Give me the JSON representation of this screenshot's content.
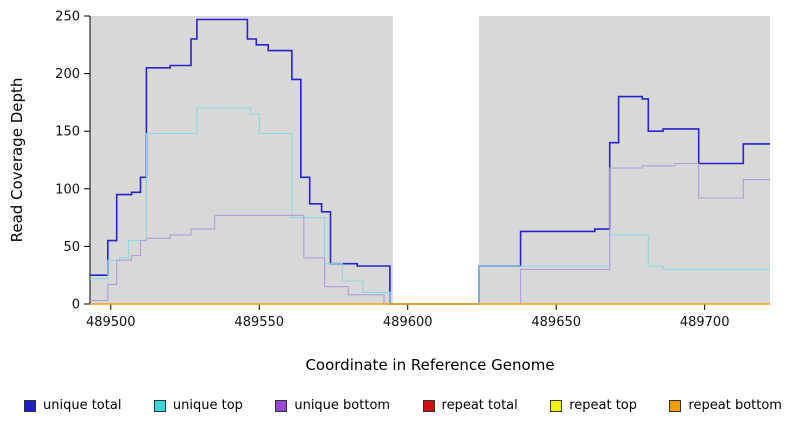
{
  "figure": {
    "background": "#ffffff"
  },
  "chart_data": {
    "type": "line",
    "title": "",
    "xlabel": "Coordinate in Reference Genome",
    "ylabel": "Read Coverage Depth",
    "xlim": [
      489493,
      489722
    ],
    "ylim": [
      0,
      250
    ],
    "xticks": [
      489500,
      489550,
      489600,
      489650,
      489700
    ],
    "yticks": [
      0,
      50,
      100,
      150,
      200,
      250
    ],
    "plot_background": "#d8d8d8",
    "gap_region": [
      489595,
      489624
    ],
    "step_mode": "after",
    "legend_position": "bottom",
    "grid": false,
    "series": [
      {
        "name": "unique total",
        "line_color": "#2424cc",
        "legend_color": "#1c1ccc",
        "width": 1.6,
        "points": [
          [
            489493,
            25
          ],
          [
            489499,
            55
          ],
          [
            489502,
            95
          ],
          [
            489507,
            97
          ],
          [
            489510,
            110
          ],
          [
            489512,
            205
          ],
          [
            489520,
            207
          ],
          [
            489527,
            230
          ],
          [
            489529,
            247
          ],
          [
            489546,
            230
          ],
          [
            489549,
            225
          ],
          [
            489553,
            220
          ],
          [
            489561,
            195
          ],
          [
            489564,
            110
          ],
          [
            489567,
            87
          ],
          [
            489571,
            80
          ],
          [
            489574,
            35
          ],
          [
            489583,
            33
          ],
          [
            489594,
            0
          ],
          [
            489624,
            33
          ],
          [
            489638,
            63
          ],
          [
            489663,
            65
          ],
          [
            489668,
            140
          ],
          [
            489671,
            180
          ],
          [
            489679,
            178
          ],
          [
            489681,
            150
          ],
          [
            489686,
            152
          ],
          [
            489698,
            122
          ],
          [
            489713,
            139
          ]
        ]
      },
      {
        "name": "unique top",
        "line_color": "#85dbe6",
        "legend_color": "#3ad6e2",
        "width": 1.1,
        "points": [
          [
            489493,
            22
          ],
          [
            489499,
            38
          ],
          [
            489503,
            40
          ],
          [
            489506,
            55
          ],
          [
            489512,
            148
          ],
          [
            489529,
            170
          ],
          [
            489547,
            165
          ],
          [
            489550,
            148
          ],
          [
            489561,
            75
          ],
          [
            489572,
            35
          ],
          [
            489578,
            20
          ],
          [
            489585,
            10
          ],
          [
            489594,
            0
          ],
          [
            489624,
            33
          ],
          [
            489668,
            60
          ],
          [
            489681,
            33
          ],
          [
            489686,
            30
          ]
        ]
      },
      {
        "name": "unique bottom",
        "line_color": "#b49add",
        "legend_color": "#9747d1",
        "width": 1.1,
        "points": [
          [
            489493,
            3
          ],
          [
            489499,
            17
          ],
          [
            489502,
            38
          ],
          [
            489507,
            42
          ],
          [
            489510,
            55
          ],
          [
            489512,
            57
          ],
          [
            489520,
            60
          ],
          [
            489527,
            65
          ],
          [
            489535,
            77
          ],
          [
            489565,
            40
          ],
          [
            489572,
            15
          ],
          [
            489580,
            8
          ],
          [
            489592,
            0
          ],
          [
            489638,
            30
          ],
          [
            489668,
            118
          ],
          [
            489679,
            120
          ],
          [
            489690,
            122
          ],
          [
            489698,
            92
          ],
          [
            489713,
            108
          ]
        ]
      },
      {
        "name": "repeat total",
        "line_color": "#cc0f0f",
        "legend_color": "#cc0f0f",
        "width": 1.0,
        "points": [
          [
            489493,
            0
          ]
        ]
      },
      {
        "name": "repeat top",
        "line_color": "#f2f20c",
        "legend_color": "#f2f20c",
        "width": 1.0,
        "points": [
          [
            489493,
            0
          ]
        ]
      },
      {
        "name": "repeat bottom",
        "line_color": "#ff9e0c",
        "legend_color": "#ff9e0c",
        "width": 1.4,
        "points": [
          [
            489493,
            0
          ]
        ]
      }
    ]
  }
}
